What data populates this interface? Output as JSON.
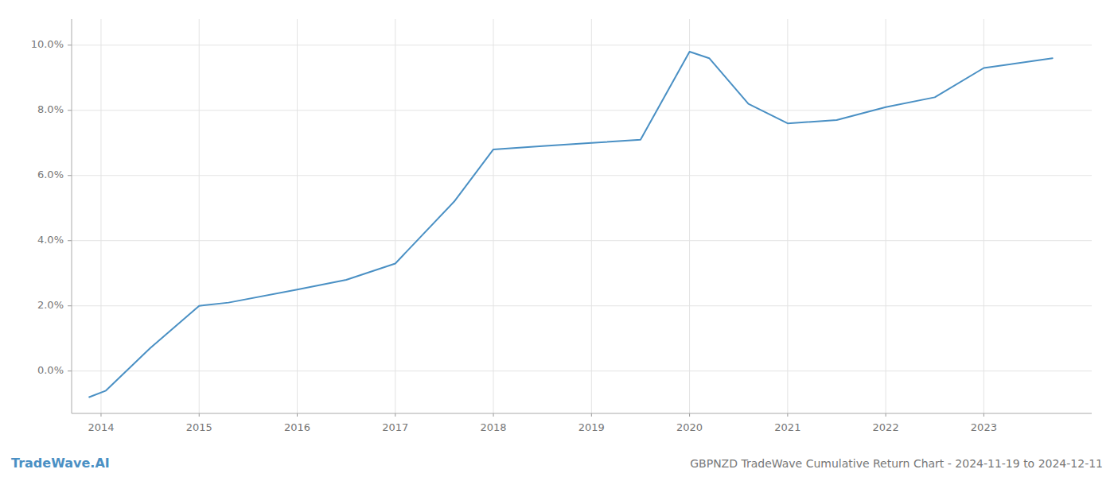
{
  "chart_data": {
    "type": "line",
    "title": "GBPNZD TradeWave Cumulative Return Chart - 2024-11-19 to 2024-12-11",
    "annotations": [
      "TradeWave.AI"
    ],
    "x": [
      2013.88,
      2014.05,
      2014.5,
      2015.0,
      2015.3,
      2016.0,
      2016.5,
      2017.0,
      2017.6,
      2018.0,
      2018.5,
      2019.0,
      2019.5,
      2020.0,
      2020.2,
      2020.6,
      2021.0,
      2021.5,
      2022.0,
      2022.5,
      2023.0,
      2023.7
    ],
    "values": [
      -0.008,
      -0.006,
      0.007,
      0.02,
      0.021,
      0.025,
      0.028,
      0.033,
      0.052,
      0.068,
      0.069,
      0.07,
      0.071,
      0.098,
      0.096,
      0.082,
      0.076,
      0.077,
      0.081,
      0.084,
      0.093,
      0.096
    ],
    "color": "#4a90c4",
    "xlim": [
      2013.7,
      2024.1
    ],
    "ylim": [
      -0.013,
      0.108
    ],
    "xticks": [
      2014,
      2015,
      2016,
      2017,
      2018,
      2019,
      2020,
      2021,
      2022,
      2023
    ],
    "yticks": [
      {
        "value": 0.0,
        "label": "0.0%"
      },
      {
        "value": 0.02,
        "label": "2.0%"
      },
      {
        "value": 0.04,
        "label": "4.0%"
      },
      {
        "value": 0.06,
        "label": "6.0%"
      },
      {
        "value": 0.08,
        "label": "8.0%"
      },
      {
        "value": 0.1,
        "label": "10.0%"
      }
    ],
    "grid": true
  }
}
